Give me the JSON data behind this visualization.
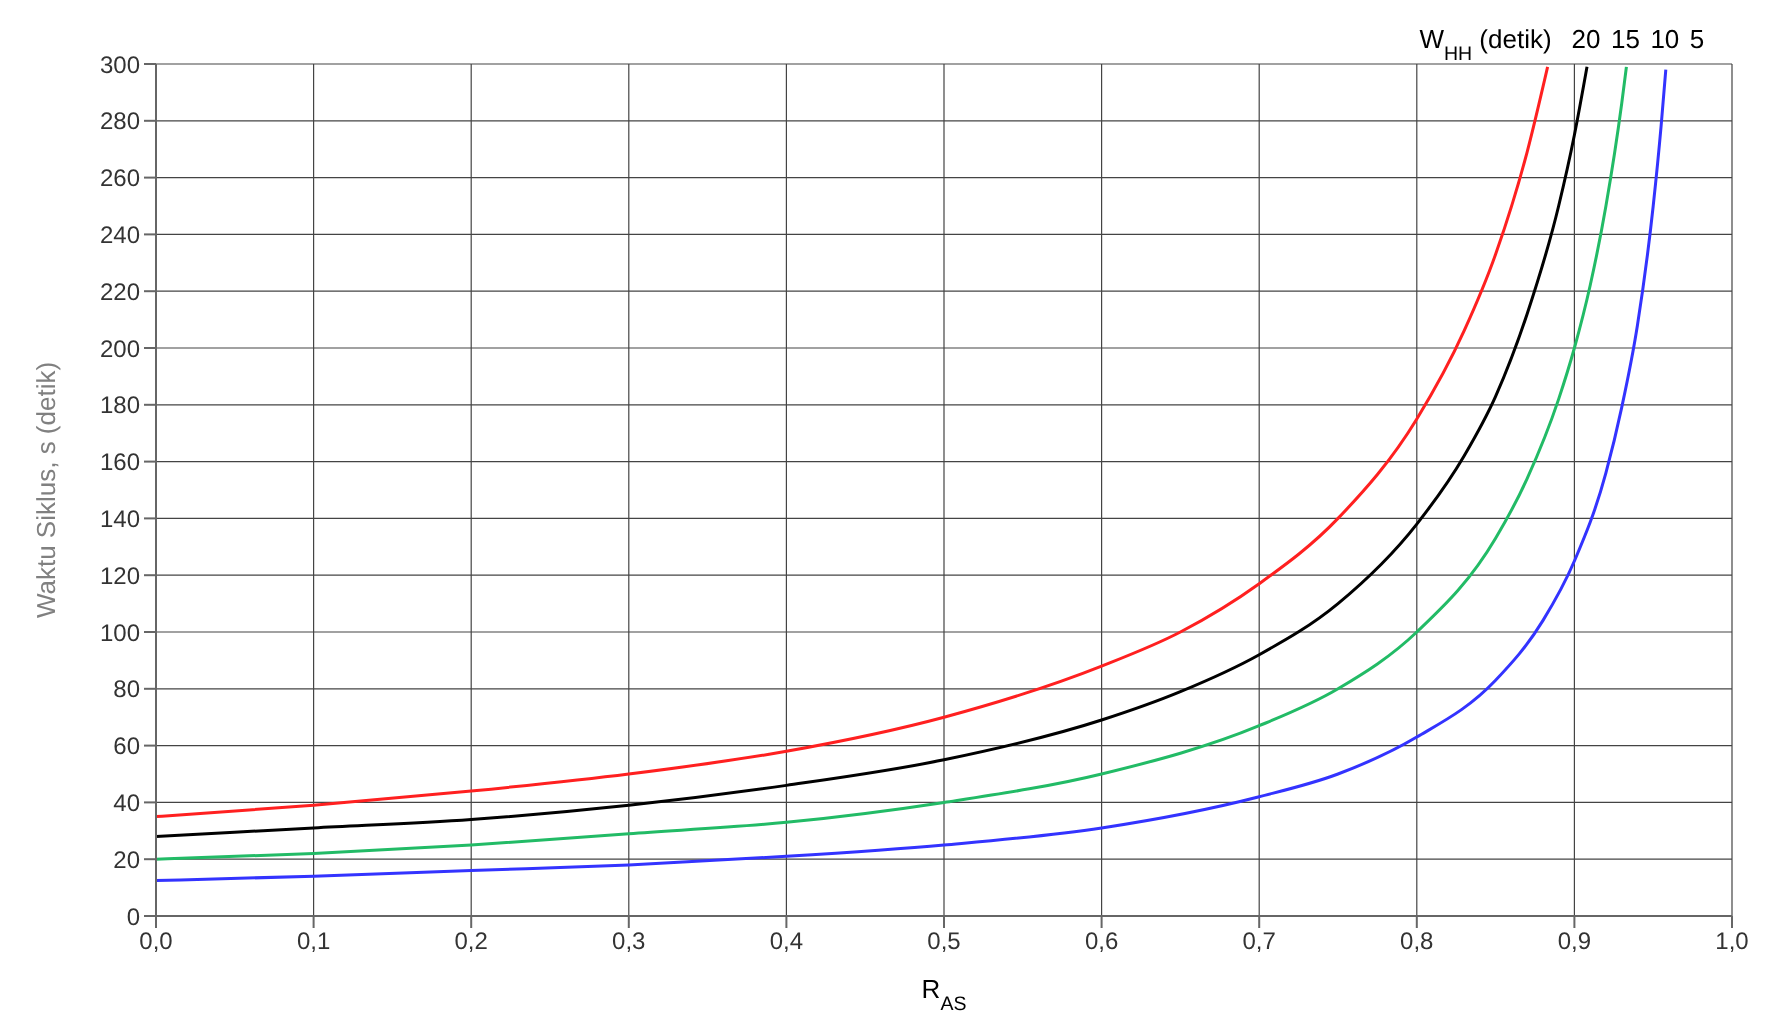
{
  "chart_data": {
    "type": "line",
    "xlabel": "R$_{AS}$",
    "ylabel": "Waktu Siklus, s (detik)",
    "legend_title": "W$_{HH}$ (detik)",
    "xlim": [
      0,
      1
    ],
    "xticks": [
      {
        "value": 0,
        "label": "0,0"
      },
      {
        "value": 0.1,
        "label": "0,1"
      },
      {
        "value": 0.2,
        "label": "0,2"
      },
      {
        "value": 0.3,
        "label": "0,3"
      },
      {
        "value": 0.4,
        "label": "0,4"
      },
      {
        "value": 0.5,
        "label": "0,5"
      },
      {
        "value": 0.6,
        "label": "0,6"
      },
      {
        "value": 0.7,
        "label": "0,7"
      },
      {
        "value": 0.8,
        "label": "0,8"
      },
      {
        "value": 0.9,
        "label": "0,9"
      },
      {
        "value": 1,
        "label": "1,0"
      }
    ],
    "ylim": [
      0,
      300
    ],
    "yticks": [
      0,
      20,
      40,
      60,
      80,
      100,
      120,
      140,
      160,
      180,
      200,
      220,
      240,
      260,
      280,
      300
    ],
    "grid": true,
    "marker": "none",
    "line_style": "solid",
    "series": [
      {
        "name": "20",
        "color": "#ff2020",
        "x": [
          0,
          0.1,
          0.2,
          0.3,
          0.4,
          0.5,
          0.6,
          0.65,
          0.7,
          0.75,
          0.8,
          0.83,
          0.85,
          0.87,
          0.883
        ],
        "values": [
          35,
          39,
          44,
          50,
          58,
          70,
          88,
          100,
          117,
          140,
          175,
          206,
          233,
          269,
          299
        ]
      },
      {
        "name": "15",
        "color": "#000000",
        "x": [
          0,
          0.1,
          0.2,
          0.3,
          0.4,
          0.5,
          0.6,
          0.65,
          0.7,
          0.75,
          0.8,
          0.83,
          0.85,
          0.87,
          0.89,
          0.9,
          0.908
        ],
        "values": [
          28,
          31,
          34,
          39,
          46,
          55,
          69,
          79,
          92,
          110,
          138,
          162,
          183,
          212,
          250,
          275,
          299
        ]
      },
      {
        "name": "10",
        "color": "#22bb66",
        "x": [
          0,
          0.1,
          0.2,
          0.3,
          0.4,
          0.5,
          0.6,
          0.7,
          0.75,
          0.8,
          0.85,
          0.87,
          0.89,
          0.9,
          0.91,
          0.92,
          0.93,
          0.933
        ],
        "values": [
          20,
          22,
          25,
          29,
          33,
          40,
          50,
          67,
          80,
          100,
          133,
          154,
          182,
          200,
          222,
          250,
          286,
          299
        ]
      },
      {
        "name": "5",
        "color": "#3333ff",
        "x": [
          0,
          0.1,
          0.2,
          0.3,
          0.4,
          0.5,
          0.6,
          0.7,
          0.75,
          0.8,
          0.85,
          0.88,
          0.9,
          0.92,
          0.93,
          0.94,
          0.95,
          0.955,
          0.958
        ],
        "values": [
          12.5,
          14,
          16,
          18,
          21,
          25,
          31,
          42,
          50,
          63,
          83,
          104,
          125,
          156,
          179,
          208,
          250,
          278,
          298
        ]
      }
    ]
  }
}
